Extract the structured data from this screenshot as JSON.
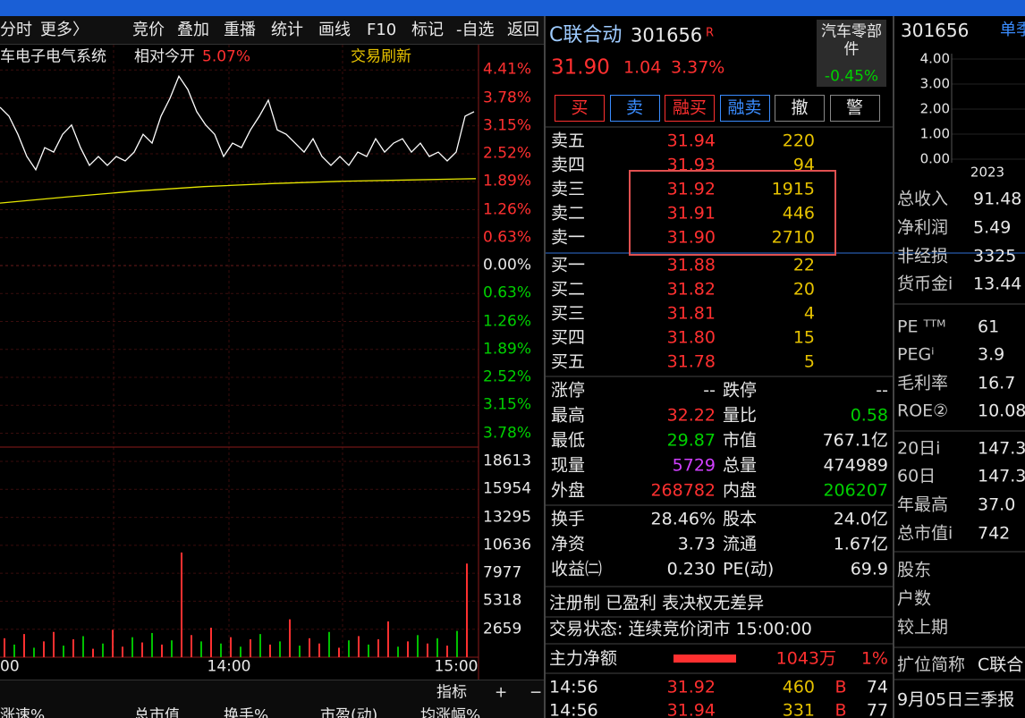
{
  "toolbar": [
    "分时",
    "更多〉",
    "竞价",
    "叠加",
    "重播",
    "统计",
    "画线",
    "F10",
    "标记",
    "-自选",
    "返回"
  ],
  "chart": {
    "sector": "车电子电气系统",
    "relative_label": "相对今开",
    "relative_value": "5.07%",
    "refresh": "交易刷新",
    "ylim": [
      -3.78,
      4.41
    ],
    "price_ticks": [
      {
        "value": 4.41,
        "label": "4.41%"
      },
      {
        "value": 3.78,
        "label": "3.78%"
      },
      {
        "value": 3.15,
        "label": "3.15%"
      },
      {
        "value": 2.52,
        "label": "2.52%"
      },
      {
        "value": 1.89,
        "label": "1.89%"
      },
      {
        "value": 1.26,
        "label": "1.26%"
      },
      {
        "value": 0.63,
        "label": "0.63%"
      },
      {
        "value": 0,
        "label": "0.00%"
      },
      {
        "value": -0.63,
        "label": "0.63%"
      },
      {
        "value": -1.26,
        "label": "1.26%"
      },
      {
        "value": -1.89,
        "label": "1.89%"
      },
      {
        "value": -2.52,
        "label": "2.52%"
      },
      {
        "value": -3.15,
        "label": "3.15%"
      },
      {
        "value": -3.78,
        "label": "3.78%"
      }
    ],
    "volume_ylim": [
      0,
      18613
    ],
    "volume_ticks": [
      18613,
      15954,
      13295,
      10636,
      7977,
      5318,
      2659
    ],
    "time_ticks": [
      "00",
      "14:00",
      "15:00"
    ],
    "price_line": {
      "color": "#ffffff",
      "values": [
        3.57,
        3.37,
        2.96,
        2.46,
        2.16,
        2.66,
        2.56,
        2.96,
        3.17,
        2.66,
        2.26,
        2.46,
        2.26,
        2.46,
        2.36,
        2.56,
        2.96,
        2.76,
        3.37,
        3.77,
        4.27,
        3.97,
        3.47,
        3.17,
        2.96,
        2.46,
        2.76,
        2.66,
        3.06,
        3.37,
        3.73,
        3.06,
        2.96,
        2.76,
        2.56,
        2.86,
        2.46,
        2.26,
        2.46,
        2.26,
        2.56,
        2.46,
        2.86,
        2.56,
        2.76,
        2.86,
        2.56,
        2.76,
        2.46,
        2.56,
        2.36,
        2.56,
        3.37,
        3.47
      ]
    },
    "avg_line": {
      "color": "#e6e600",
      "values": [
        1.41,
        1.55,
        1.68,
        1.78,
        1.85,
        1.9,
        1.93,
        1.96
      ]
    },
    "volume": {
      "up_color": "#ff3030",
      "down_color": "#00c000",
      "values": [
        1800,
        1200,
        2200,
        900,
        1500,
        2400,
        1100,
        1700,
        2000,
        800,
        1300,
        2600,
        1000,
        1900,
        1400,
        2300,
        1200,
        1600,
        9950,
        2100,
        1500,
        2800,
        1300,
        1900,
        1000,
        1700,
        2200,
        1200,
        1500,
        3600,
        1100,
        1800,
        1300,
        2400,
        900,
        1600,
        2000,
        1200,
        1700,
        3400,
        1000,
        1500,
        2100,
        1300,
        1800,
        1100,
        2500,
        8900
      ],
      "up": [
        true,
        false,
        true,
        false,
        true,
        true,
        false,
        true,
        false,
        true,
        false,
        true,
        true,
        false,
        true,
        false,
        true,
        false,
        true,
        true,
        false,
        true,
        false,
        true,
        false,
        true,
        false,
        true,
        false,
        true,
        false,
        true,
        true,
        false,
        true,
        false,
        true,
        false,
        true,
        true,
        false,
        true,
        false,
        true,
        false,
        true,
        false,
        true
      ]
    },
    "buttons": [
      "指标",
      "+",
      "−"
    ],
    "columns": [
      "涨速%",
      "总市值",
      "换手%",
      "市盈(动)",
      "均涨幅%"
    ]
  },
  "quote": {
    "name": "C联合动",
    "code": "301656",
    "badge": "R",
    "price": "31.90",
    "change": "1.04",
    "change_pct": "3.37%",
    "industry": "汽车零部件",
    "industry_change": "-0.45%",
    "actions": [
      "买",
      "卖",
      "融买",
      "融卖",
      "撤",
      "警"
    ],
    "sells": [
      [
        "卖五",
        "31.94",
        "220"
      ],
      [
        "卖四",
        "31.93",
        "94"
      ],
      [
        "卖三",
        "31.92",
        "1915"
      ],
      [
        "卖二",
        "31.91",
        "446"
      ],
      [
        "卖一",
        "31.90",
        "2710"
      ]
    ],
    "buys": [
      [
        "买一",
        "31.88",
        "22"
      ],
      [
        "买二",
        "31.82",
        "20"
      ],
      [
        "买三",
        "31.81",
        "4"
      ],
      [
        "买四",
        "31.80",
        "15"
      ],
      [
        "买五",
        "31.78",
        "5"
      ]
    ],
    "stats": [
      [
        "涨停",
        "--",
        "跌停",
        "--"
      ],
      [
        "最高",
        "32.22",
        "量比",
        "0.58"
      ],
      [
        "最低",
        "29.87",
        "市值",
        "767.1亿"
      ],
      [
        "现量",
        "5729",
        "总量",
        "474989"
      ],
      [
        "外盘",
        "268782",
        "内盘",
        "206207"
      ]
    ],
    "stats_colors": [
      [
        "#e8e8e8",
        "#e8e8e8"
      ],
      [
        "#ff3030",
        "#00d000"
      ],
      [
        "#00d000",
        "#e8e8e8"
      ],
      [
        "#d040ff",
        "#e8e8e8"
      ],
      [
        "#ff3030",
        "#00d000"
      ]
    ],
    "stats2": [
      [
        "换手",
        "28.46%",
        "股本",
        "24.0亿"
      ],
      [
        "净资",
        "3.73",
        "流通",
        "1.67亿"
      ],
      [
        "收益㈡",
        "0.230",
        "PE(动)",
        "69.9"
      ]
    ],
    "tags": "注册制 已盈利 表决权无差异",
    "status": "交易状态: 连续竞价闭市 15:00:00",
    "main_flow": {
      "label": "主力净额",
      "value": "1043万",
      "pct": "1%"
    },
    "trades": [
      [
        "14:56",
        "31.92",
        "460",
        "B",
        "74"
      ],
      [
        "14:56",
        "31.94",
        "331",
        "B",
        "77"
      ]
    ]
  },
  "side": {
    "code": "301656",
    "period": "单季",
    "axis": [
      "4.00",
      "3.00",
      "2.00",
      "1.00",
      "0.00"
    ],
    "year": "2023",
    "rows": [
      [
        "总收入",
        "91.48"
      ],
      [
        "净利润",
        "5.49"
      ],
      [
        "非经损",
        "3325"
      ],
      [
        "货币金i",
        "13.44"
      ],
      [
        "PE ᵀᵀᴹ",
        "61"
      ],
      [
        "PEGⁱ",
        "3.9"
      ],
      [
        "毛利率",
        "16.7"
      ],
      [
        "ROE②",
        "10.08"
      ],
      [
        "20日i",
        "147.3"
      ],
      [
        "60日",
        "147.3"
      ],
      [
        "年最高",
        "37.0"
      ],
      [
        "总市值i",
        "742"
      ],
      [
        "股东",
        ""
      ],
      [
        "户数",
        ""
      ],
      [
        "较上期",
        ""
      ],
      [
        "扩位简称",
        "C联合"
      ]
    ],
    "report": "9月05日三季报"
  }
}
